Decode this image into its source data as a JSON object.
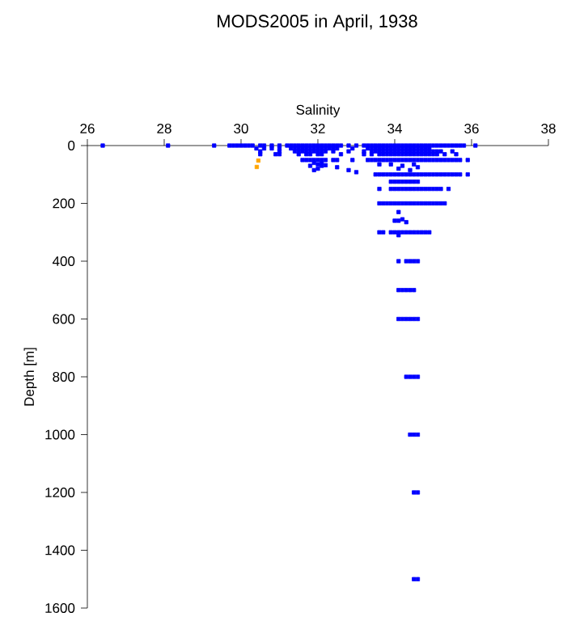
{
  "chart_data": {
    "type": "scatter",
    "title": "MODS2005 in April, 1938",
    "xlabel": "Salinity",
    "ylabel": "Depth [m]",
    "xlim": [
      26,
      38
    ],
    "ylim": [
      1600,
      0
    ],
    "xticks": [
      26,
      28,
      30,
      32,
      34,
      36,
      38
    ],
    "yticks": [
      0,
      200,
      400,
      600,
      800,
      1000,
      1200,
      1400,
      1600
    ],
    "marker": "square",
    "series": [
      {
        "color": "#0000ff",
        "x": [
          26.4,
          28.1,
          29.3,
          29.7,
          29.8,
          29.9,
          30.0,
          30.1,
          30.2,
          30.3,
          30.5,
          30.6,
          30.8,
          31.0,
          31.2,
          31.3,
          31.4,
          31.5,
          31.6,
          31.7,
          31.8,
          31.9,
          32.0,
          32.1,
          32.2,
          32.3,
          32.4,
          32.5,
          32.6,
          32.8,
          33.0,
          33.2,
          33.3,
          33.4,
          33.5,
          33.6,
          33.7,
          33.8,
          33.9,
          34.0,
          34.1,
          34.2,
          34.3,
          34.4,
          34.5,
          34.6,
          34.7,
          34.8,
          34.9,
          35.0,
          35.1,
          35.2,
          35.3,
          35.4,
          35.5,
          35.6,
          35.7,
          35.8,
          36.1,
          30.4,
          30.6,
          30.8,
          31.0,
          31.3,
          31.4,
          31.5,
          31.6,
          31.7,
          31.8,
          31.9,
          32.0,
          32.1,
          32.2,
          32.3,
          32.4,
          32.5,
          32.9,
          33.3,
          33.4,
          33.5,
          33.6,
          33.7,
          33.8,
          33.9,
          34.0,
          34.1,
          34.2,
          34.3,
          34.4,
          34.5,
          34.6,
          34.7,
          34.8,
          34.9,
          30.5,
          31.0,
          31.4,
          31.5,
          31.6,
          31.7,
          31.8,
          31.9,
          32.0,
          32.1,
          32.2,
          32.4,
          32.8,
          33.2,
          33.4,
          33.5,
          33.6,
          33.7,
          33.8,
          33.9,
          34.0,
          34.1,
          34.2,
          34.3,
          34.4,
          34.5,
          34.6,
          34.7,
          34.8,
          34.9,
          35.0,
          35.1,
          35.2,
          35.5,
          30.5,
          30.9,
          31.0,
          31.5,
          31.7,
          31.8,
          32.0,
          32.1,
          32.6,
          33.2,
          33.4,
          33.6,
          33.7,
          33.8,
          33.9,
          34.0,
          34.1,
          34.2,
          34.3,
          34.4,
          34.5,
          34.6,
          34.7,
          34.8,
          34.9,
          35.0,
          35.1,
          35.3,
          35.6,
          31.6,
          31.7,
          31.8,
          31.9,
          32.0,
          32.1,
          32.2,
          32.4,
          32.5,
          32.9,
          33.3,
          33.4,
          33.5,
          33.6,
          33.7,
          33.8,
          33.9,
          34.0,
          34.1,
          34.2,
          34.3,
          34.4,
          34.5,
          34.6,
          34.7,
          34.8,
          34.9,
          35.0,
          35.1,
          35.2,
          35.3,
          35.4,
          35.5,
          35.6,
          35.7,
          35.9,
          31.9,
          32.0,
          32.1,
          31.8,
          32.0,
          31.9,
          32.1,
          32.2,
          32.5,
          32.8,
          33.0,
          33.9,
          34.2,
          34.5,
          34.6,
          34.1,
          34.4,
          33.6,
          33.5,
          33.6,
          33.7,
          33.8,
          33.9,
          34.0,
          34.1,
          34.2,
          34.3,
          34.4,
          34.5,
          34.6,
          34.7,
          34.8,
          34.9,
          35.0,
          35.1,
          35.2,
          35.3,
          35.4,
          35.5,
          35.6,
          35.7,
          35.9,
          33.9,
          34.0,
          34.1,
          34.2,
          34.3,
          34.4,
          34.5,
          34.6,
          33.6,
          33.9,
          34.0,
          34.1,
          34.2,
          34.3,
          34.4,
          34.5,
          34.6,
          34.7,
          34.8,
          34.9,
          35.0,
          35.1,
          35.2,
          35.4,
          33.6,
          33.7,
          33.8,
          33.9,
          34.0,
          34.1,
          34.2,
          34.3,
          34.4,
          34.5,
          34.6,
          34.7,
          34.8,
          34.9,
          35.0,
          35.1,
          35.2,
          35.3,
          34.1,
          34.2,
          34.1,
          34.3,
          34.0,
          33.6,
          33.7,
          33.9,
          34.0,
          34.1,
          34.2,
          34.3,
          34.4,
          34.5,
          34.6,
          34.7,
          34.8,
          34.9,
          34.1,
          34.1,
          34.3,
          34.4,
          34.5,
          34.6,
          34.1,
          34.2,
          34.3,
          34.4,
          34.5,
          34.1,
          34.2,
          34.3,
          34.4,
          34.5,
          34.6,
          34.3,
          34.4,
          34.5,
          34.6,
          34.4,
          34.5,
          34.6,
          34.5,
          34.6,
          34.5,
          34.6
        ],
        "values": [
          0,
          0,
          0,
          0,
          0,
          0,
          0,
          0,
          0,
          0,
          0,
          0,
          0,
          0,
          0,
          0,
          0,
          0,
          0,
          0,
          0,
          0,
          0,
          0,
          0,
          0,
          0,
          0,
          0,
          0,
          0,
          0,
          0,
          0,
          0,
          0,
          0,
          0,
          0,
          0,
          0,
          0,
          0,
          0,
          0,
          0,
          0,
          0,
          0,
          0,
          0,
          0,
          0,
          0,
          0,
          0,
          0,
          0,
          0,
          10,
          10,
          10,
          10,
          10,
          10,
          10,
          10,
          10,
          10,
          10,
          10,
          10,
          10,
          10,
          10,
          10,
          10,
          10,
          10,
          10,
          10,
          10,
          10,
          10,
          10,
          10,
          10,
          10,
          10,
          10,
          10,
          10,
          10,
          10,
          20,
          20,
          20,
          20,
          20,
          20,
          20,
          20,
          20,
          20,
          20,
          20,
          20,
          20,
          20,
          20,
          20,
          20,
          20,
          20,
          20,
          20,
          20,
          20,
          20,
          20,
          20,
          20,
          20,
          20,
          20,
          20,
          20,
          20,
          30,
          30,
          30,
          30,
          30,
          30,
          30,
          30,
          30,
          30,
          30,
          30,
          30,
          30,
          30,
          30,
          30,
          30,
          30,
          30,
          30,
          30,
          30,
          30,
          30,
          30,
          30,
          30,
          30,
          50,
          50,
          50,
          50,
          50,
          50,
          50,
          50,
          50,
          50,
          50,
          50,
          50,
          50,
          50,
          50,
          50,
          50,
          50,
          50,
          50,
          50,
          50,
          50,
          50,
          50,
          50,
          50,
          50,
          50,
          50,
          50,
          50,
          50,
          50,
          50,
          60,
          65,
          70,
          70,
          80,
          85,
          62,
          68,
          75,
          85,
          92,
          65,
          70,
          65,
          75,
          80,
          85,
          65,
          100,
          100,
          100,
          100,
          100,
          100,
          100,
          100,
          100,
          100,
          100,
          100,
          100,
          100,
          100,
          100,
          100,
          100,
          100,
          100,
          100,
          100,
          100,
          100,
          125,
          125,
          125,
          125,
          125,
          125,
          125,
          125,
          150,
          150,
          150,
          150,
          150,
          150,
          150,
          150,
          150,
          150,
          150,
          150,
          150,
          150,
          150,
          150,
          200,
          200,
          200,
          200,
          200,
          200,
          200,
          200,
          200,
          200,
          200,
          200,
          200,
          200,
          200,
          200,
          200,
          200,
          230,
          255,
          260,
          265,
          260,
          300,
          300,
          300,
          300,
          300,
          300,
          300,
          300,
          300,
          300,
          300,
          300,
          300,
          310,
          400,
          400,
          400,
          400,
          400,
          500,
          500,
          500,
          500,
          500,
          600,
          600,
          600,
          600,
          600,
          600,
          800,
          800,
          800,
          800,
          1000,
          1000,
          1000,
          1200,
          1200,
          1500,
          1500
        ]
      },
      {
        "color": "#ffa500",
        "x": [
          30.45,
          30.41
        ],
        "values": [
          52,
          74
        ]
      }
    ]
  }
}
